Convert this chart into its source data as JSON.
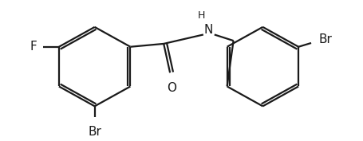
{
  "background": "#ffffff",
  "line_color": "#1a1a1a",
  "line_width": 1.6,
  "font_size": 10,
  "figsize": [
    4.55,
    1.77
  ],
  "dpi": 100,
  "xlim": [
    0,
    455
  ],
  "ylim": [
    0,
    177
  ]
}
